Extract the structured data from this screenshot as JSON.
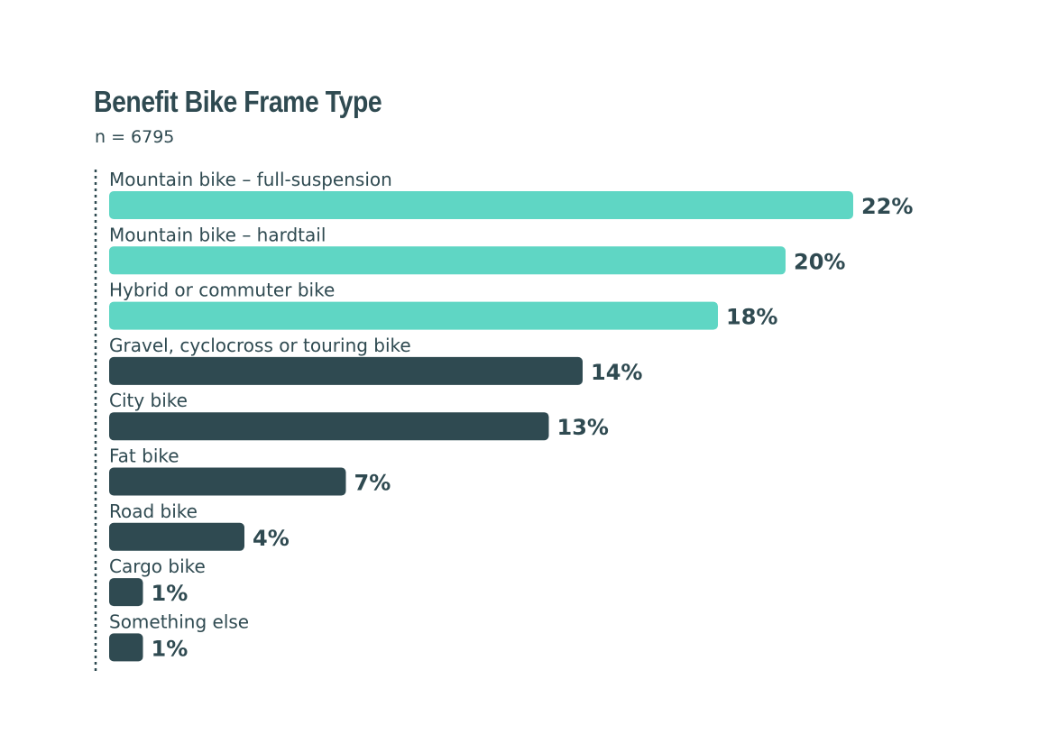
{
  "chart_data": {
    "type": "bar",
    "orientation": "horizontal",
    "title": "Benefit Bike Frame Type",
    "subtitle": "n = 6795",
    "categories": [
      "Mountain bike – full-suspension",
      "Mountain bike – hardtail",
      "Hybrid or commuter bike",
      "Gravel, cyclocross or touring bike",
      "City bike",
      "Fat bike",
      "Road bike",
      "Cargo bike",
      "Something else"
    ],
    "values": [
      22,
      20,
      18,
      14,
      13,
      7,
      4,
      1,
      1
    ],
    "value_labels": [
      "22%",
      "20%",
      "18%",
      "14%",
      "13%",
      "7%",
      "4%",
      "1%",
      "1%"
    ],
    "unit": "%",
    "highlight_count": 3,
    "colors": {
      "highlight": "#5fd6c4",
      "default": "#2f4a51",
      "text": "#2f4a51",
      "axis": "#2f4a51"
    },
    "grid": false,
    "legend": "none"
  }
}
